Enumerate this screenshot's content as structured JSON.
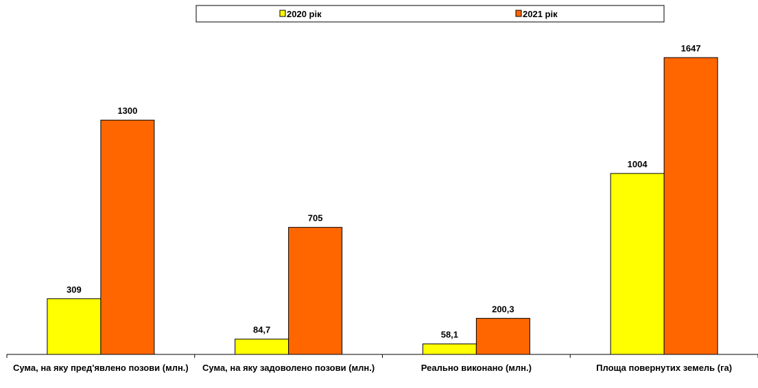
{
  "chart_data": {
    "type": "bar",
    "categories": [
      "Сума, на яку пред'явлено позови (млн.)",
      "Сума, на яку задоволено позови (млн.)",
      "Реально виконано (млн.)",
      "Площа повернутих земель (га)"
    ],
    "series": [
      {
        "name": "2020 рік",
        "color": "#ffff00",
        "values": [
          309,
          84.7,
          58.1,
          1004
        ],
        "value_labels": [
          "309",
          "84,7",
          "58,1",
          "1004"
        ]
      },
      {
        "name": "2021 рік",
        "color": "#ff6600",
        "values": [
          1300,
          705,
          200.3,
          1647
        ],
        "value_labels": [
          "1300",
          "705",
          "200,3",
          "1647"
        ]
      }
    ],
    "legend": "top"
  }
}
